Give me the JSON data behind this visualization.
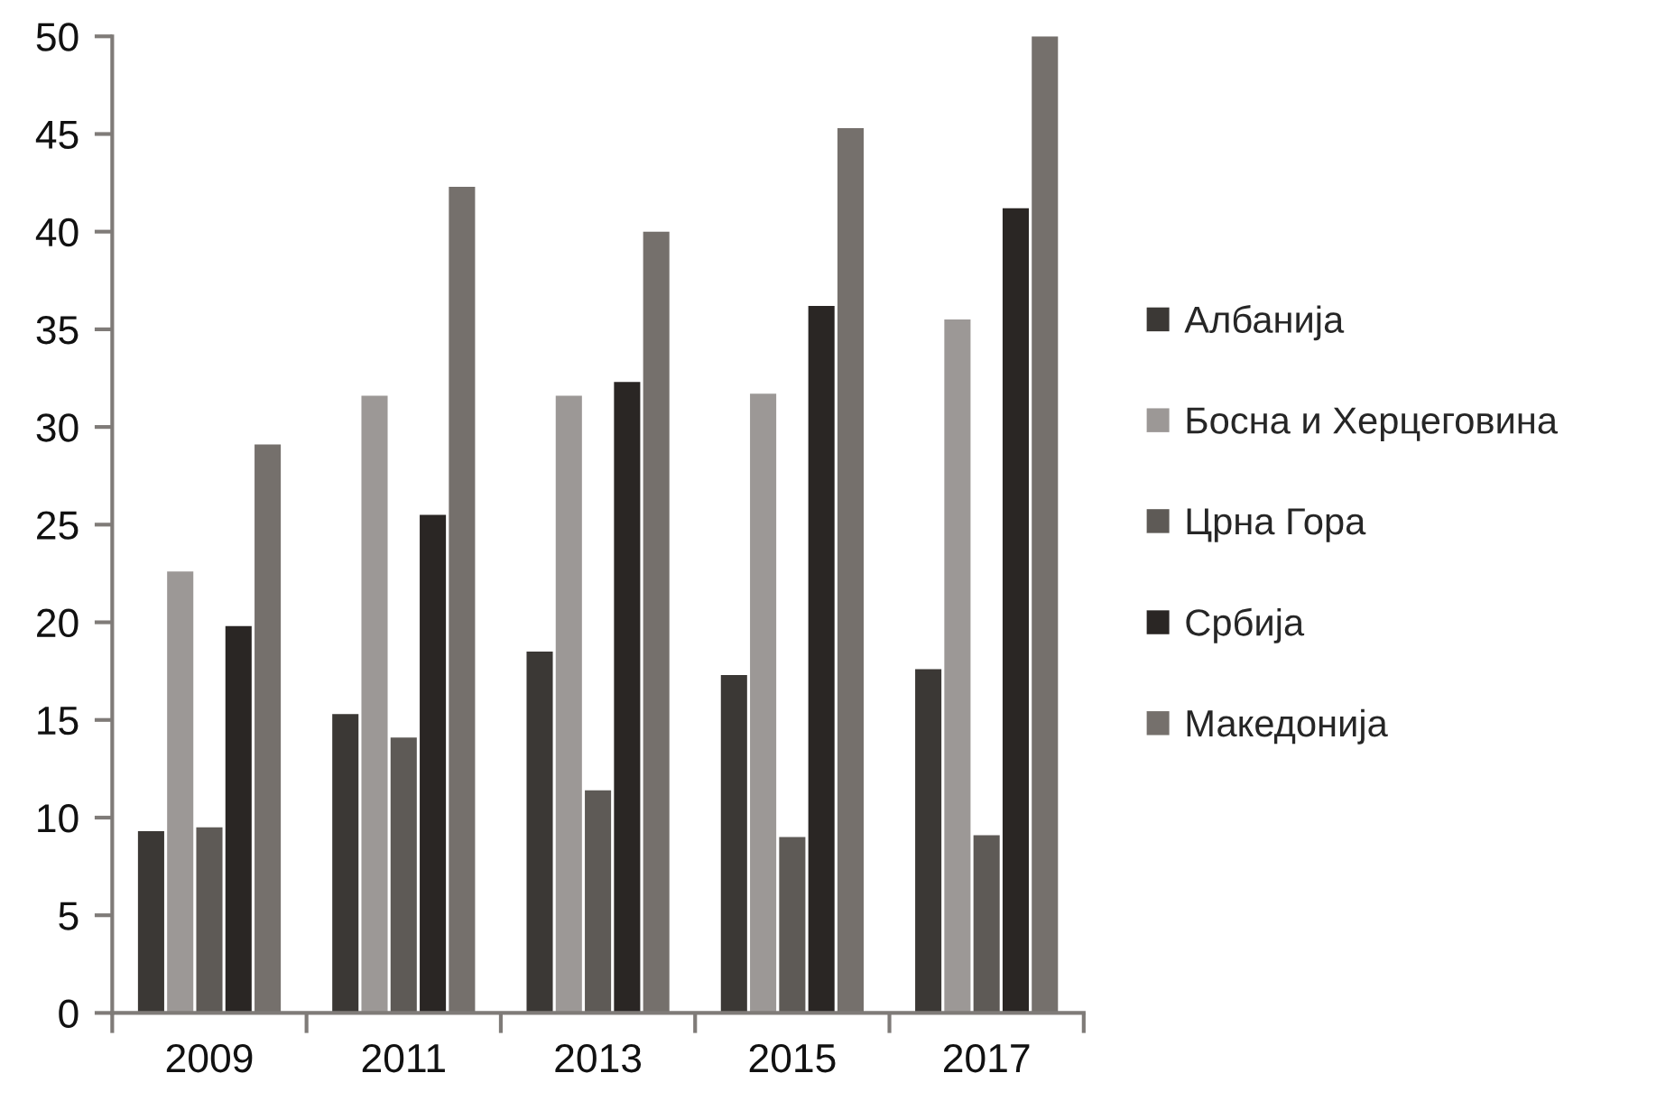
{
  "chart_data": {
    "type": "bar",
    "categories": [
      "2009",
      "2011",
      "2013",
      "2015",
      "2017"
    ],
    "series": [
      {
        "name": "Албанија",
        "color": "#3b3835",
        "values": [
          9.3,
          15.3,
          18.5,
          17.3,
          17.6
        ]
      },
      {
        "name": "Босна и Херцеговина",
        "color": "#9c9896",
        "values": [
          22.6,
          31.6,
          31.6,
          31.7,
          35.5
        ]
      },
      {
        "name": "Црна Гора",
        "color": "#5e5a56",
        "values": [
          9.5,
          14.1,
          11.4,
          9.0,
          9.1
        ]
      },
      {
        "name": "Србија",
        "color": "#2a2624",
        "values": [
          19.8,
          25.5,
          32.3,
          36.2,
          41.2
        ]
      },
      {
        "name": "Македонија",
        "color": "#75706c",
        "values": [
          29.1,
          42.3,
          40.0,
          45.3,
          50.0
        ]
      }
    ],
    "ylim": [
      0,
      50
    ],
    "yticks": [
      0,
      5,
      10,
      15,
      20,
      25,
      30,
      35,
      40,
      45,
      50
    ],
    "grid": false,
    "legend": "right"
  }
}
